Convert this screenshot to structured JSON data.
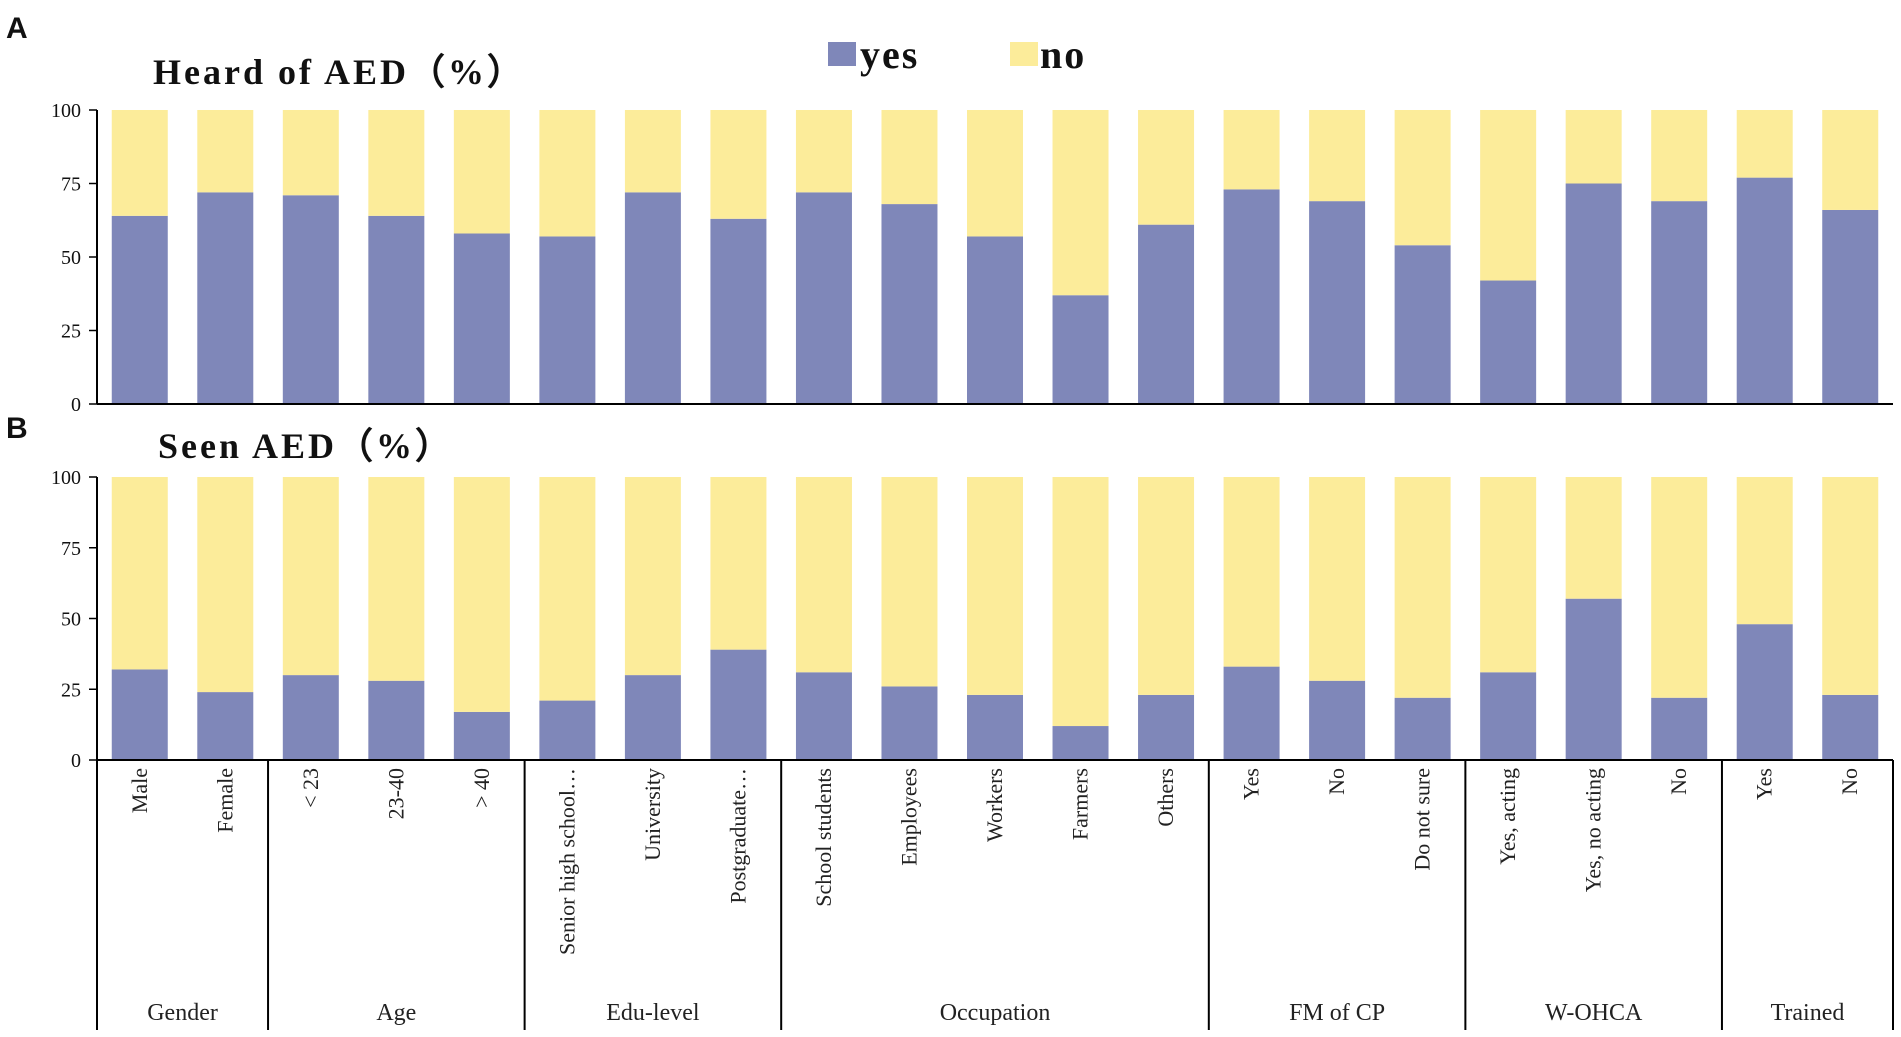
{
  "legend": {
    "yes_label": "yes",
    "no_label": "no"
  },
  "colors": {
    "yes": "#7f87b9",
    "no": "#fcec9a"
  },
  "categories": [
    "Male",
    "Female",
    "< 23",
    "23-40",
    "> 40",
    "Senior high school…",
    "University",
    "Postgraduate…",
    "School students",
    "Employees",
    "Workers",
    "Farmers",
    "Others",
    "Yes",
    "No",
    "Do not sure",
    "Yes, acting",
    "Yes, no acting",
    "No",
    "Yes",
    "No"
  ],
  "groups": [
    {
      "label": "Gender",
      "count": 2
    },
    {
      "label": "Age",
      "count": 3
    },
    {
      "label": "Edu-level",
      "count": 3
    },
    {
      "label": "Occupation",
      "count": 5
    },
    {
      "label": "FM of CP",
      "count": 3
    },
    {
      "label": "W-OHCA",
      "count": 3
    },
    {
      "label": "Trained",
      "count": 2
    }
  ],
  "chart_data": [
    {
      "panel": "A",
      "type": "bar",
      "stacked": true,
      "title": "Heard of AED（%）",
      "ylim": [
        0,
        100
      ],
      "yticks": [
        0,
        25,
        50,
        75,
        100
      ],
      "series": [
        {
          "name": "yes",
          "values": [
            64,
            72,
            71,
            64,
            58,
            57,
            72,
            63,
            72,
            68,
            57,
            37,
            61,
            73,
            69,
            54,
            42,
            75,
            69,
            77,
            66
          ]
        },
        {
          "name": "no",
          "values": [
            36,
            28,
            29,
            36,
            42,
            43,
            28,
            37,
            28,
            32,
            43,
            63,
            39,
            27,
            31,
            46,
            58,
            25,
            31,
            23,
            34
          ]
        }
      ]
    },
    {
      "panel": "B",
      "type": "bar",
      "stacked": true,
      "title": "Seen AED（%）",
      "ylim": [
        0,
        100
      ],
      "yticks": [
        0,
        25,
        50,
        75,
        100
      ],
      "series": [
        {
          "name": "yes",
          "values": [
            32,
            24,
            30,
            28,
            17,
            21,
            30,
            39,
            31,
            26,
            23,
            12,
            23,
            33,
            28,
            22,
            31,
            57,
            22,
            48,
            23
          ]
        },
        {
          "name": "no",
          "values": [
            68,
            76,
            70,
            72,
            83,
            79,
            70,
            61,
            69,
            74,
            77,
            88,
            77,
            67,
            72,
            78,
            69,
            43,
            78,
            52,
            77
          ]
        }
      ]
    }
  ]
}
